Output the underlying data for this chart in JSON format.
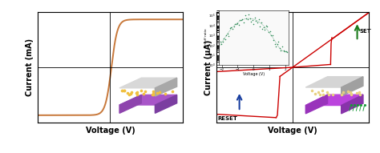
{
  "left_panel": {
    "title_x": "Voltage (V)",
    "title_y": "Current (mA)",
    "curve_color": "#c8783a",
    "xlim": [
      -3,
      3
    ],
    "ylim": [
      -1.15,
      1.15
    ]
  },
  "right_panel": {
    "title_x": "Voltage (V)",
    "title_y": "Current (μA)",
    "main_curve_color": "#cc0000",
    "arrow_set_color": "#1a7a1a",
    "arrow_reset_color": "#1a3fa0",
    "set_label": "SET",
    "reset_label": "RESET",
    "inset_curve_color": "#2e8b57",
    "inset_xlabel": "Voltage (V)",
    "inset_ylabel": "On/off ratio",
    "xlim": [
      -3,
      3
    ],
    "ylim": [
      -1.15,
      1.15
    ]
  },
  "axis_label_fontsize": 7,
  "reset_label_fontsize": 5,
  "set_label_fontsize": 5
}
